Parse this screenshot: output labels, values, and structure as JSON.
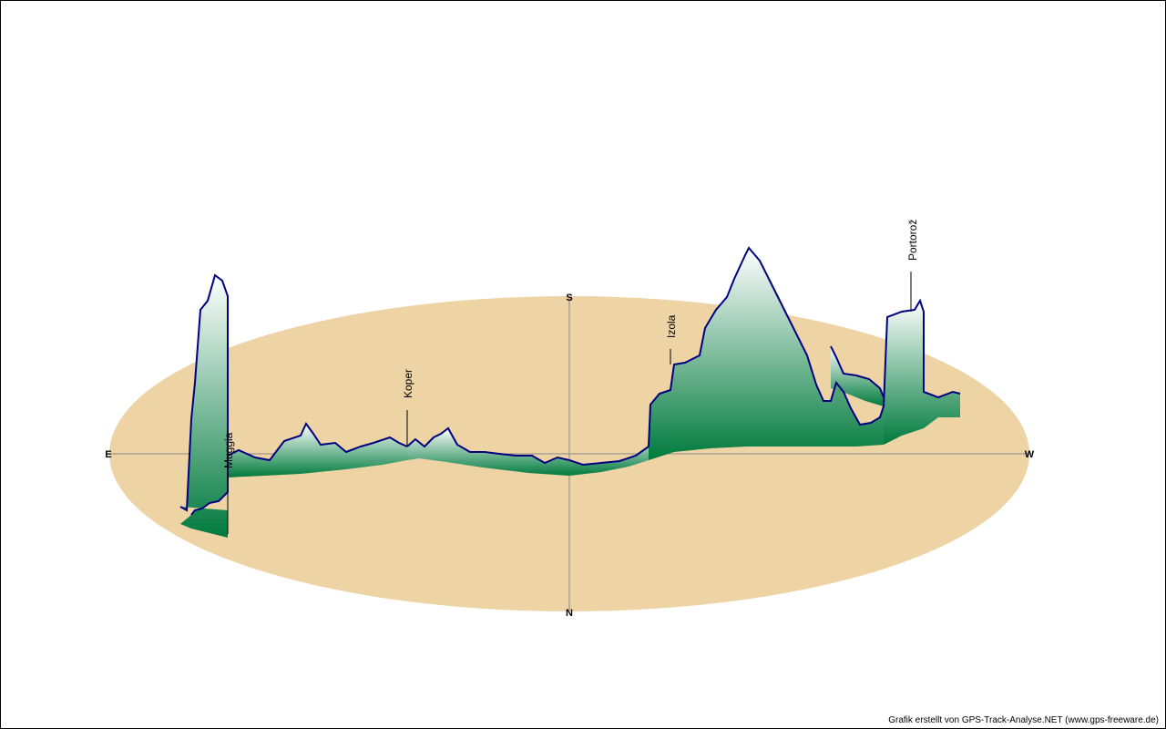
{
  "chart_data": {
    "type": "area",
    "ground_color": "#eed3a5",
    "line_color": "#000080",
    "fill_top_color": "#ffffff",
    "fill_bottom_color": "#007a3d",
    "compass": {
      "east": "E",
      "south": "S",
      "west": "W",
      "north": "N"
    },
    "places": [
      {
        "name": "Muggia"
      },
      {
        "name": "Koper"
      },
      {
        "name": "Izola"
      },
      {
        "name": "Portorož"
      }
    ]
  },
  "credit": "Grafik erstellt von GPS-Track-Analyse.NET (www.gps-freeware.de)"
}
